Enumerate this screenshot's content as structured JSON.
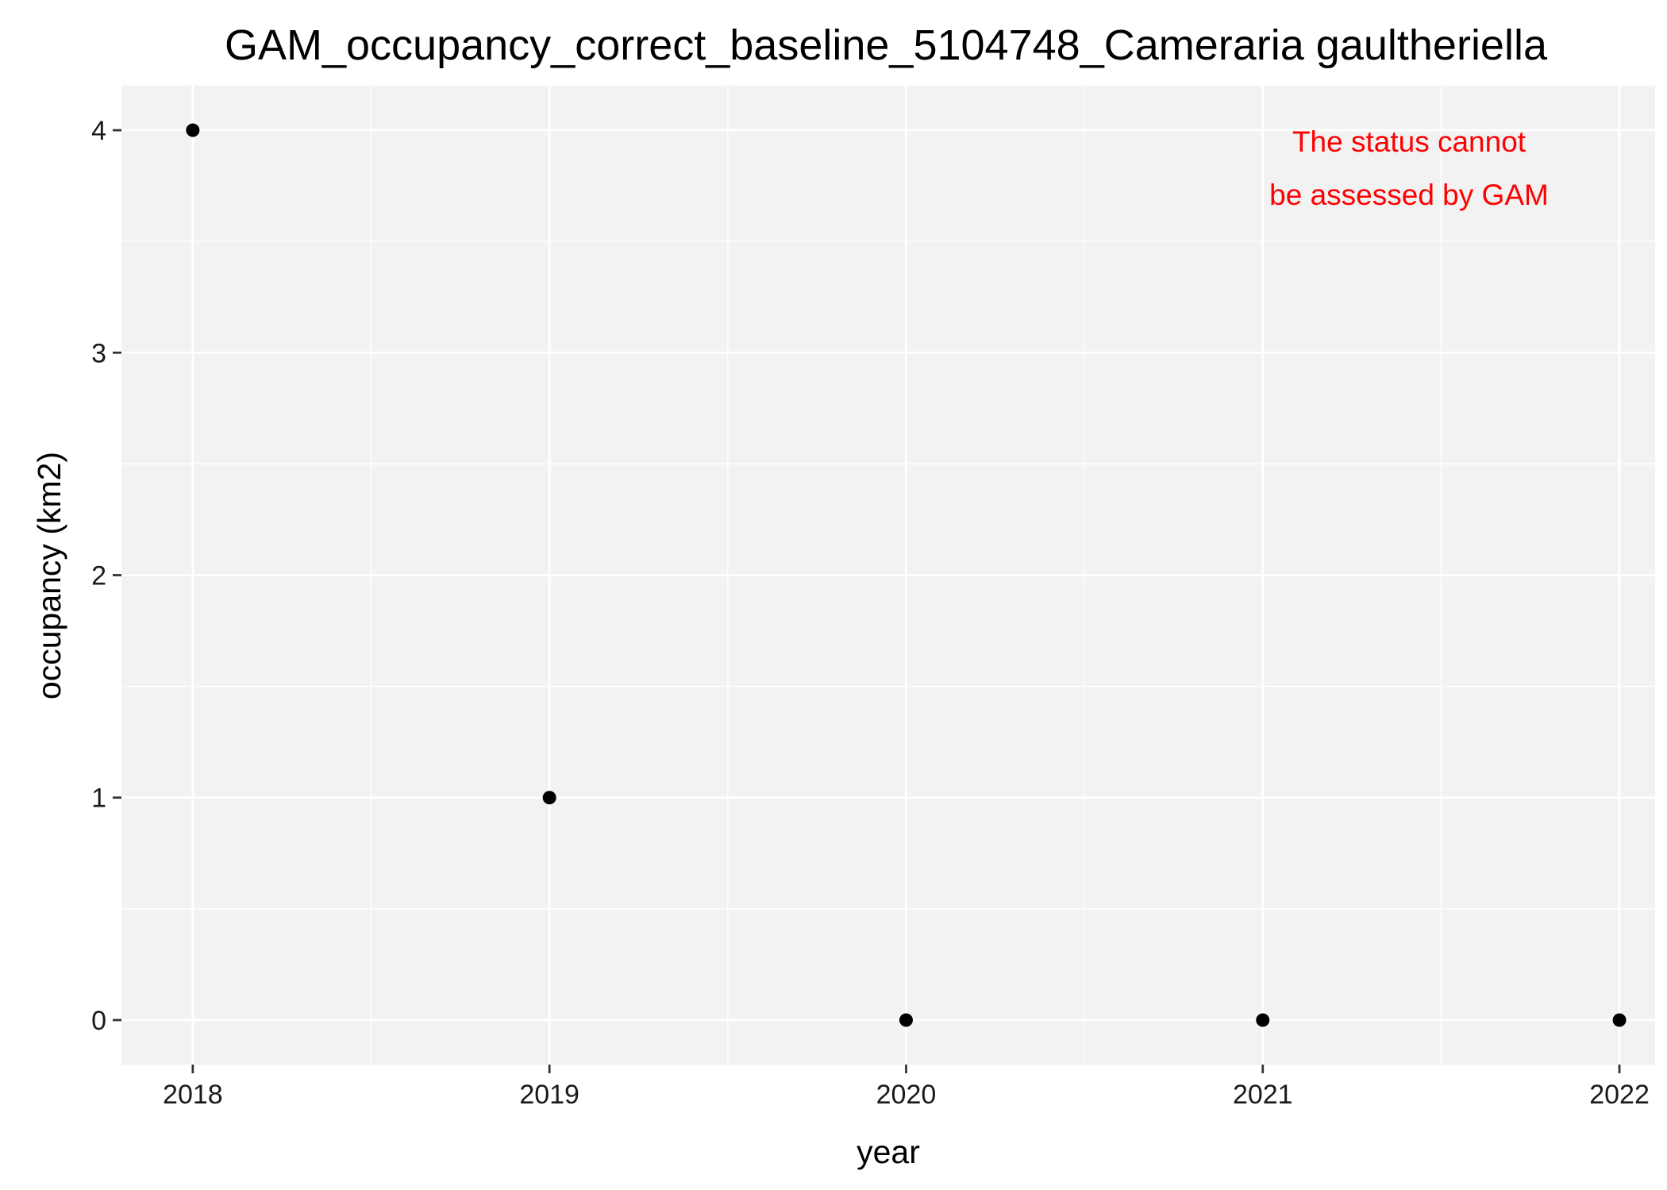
{
  "chart_data": {
    "type": "scatter",
    "title": "GAM_occupancy_correct_baseline_5104748_Cameraria gaultheriella",
    "xlabel": "year",
    "ylabel": "occupancy (km2)",
    "x": [
      2018,
      2019,
      2020,
      2021,
      2022
    ],
    "y": [
      4,
      1,
      0,
      0,
      0
    ],
    "x_ticks": [
      "2018",
      "2019",
      "2020",
      "2021",
      "2022"
    ],
    "y_ticks": [
      "0",
      "1",
      "2",
      "3",
      "4"
    ],
    "xlim": [
      2017.8,
      2022.1
    ],
    "ylim": [
      -0.2,
      4.2
    ],
    "grid": true,
    "annotation": {
      "lines": [
        "The status cannot",
        "be assessed by GAM"
      ],
      "color": "#ff0000",
      "placement": "top-right"
    },
    "panel_color": "#f2f2f2",
    "point_color": "#000000"
  }
}
